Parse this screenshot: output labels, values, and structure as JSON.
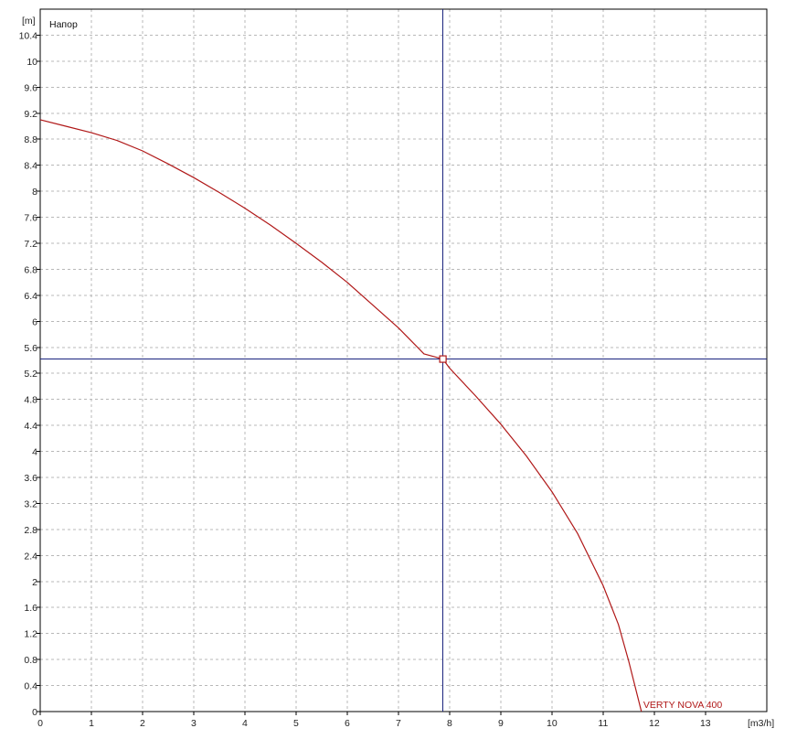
{
  "chart_data": {
    "type": "line",
    "title": "Напор",
    "xlabel": "[m3/h]",
    "ylabel": "[m]",
    "xlim": [
      0,
      14.2
    ],
    "ylim": [
      0,
      10.8
    ],
    "x_ticks": [
      0,
      1,
      2,
      3,
      4,
      5,
      6,
      7,
      8,
      9,
      10,
      11,
      12,
      13
    ],
    "y_ticks": [
      0,
      0.4,
      0.8,
      1.2,
      1.6,
      2,
      2.4,
      2.8,
      3.2,
      3.6,
      4,
      4.4,
      4.8,
      5.2,
      5.6,
      6,
      6.4,
      6.8,
      7.2,
      7.6,
      8,
      8.4,
      8.8,
      9.2,
      9.6,
      10,
      10.4
    ],
    "grid": true,
    "series": [
      {
        "name": "VERTY NOVA 400",
        "color": "#b01818",
        "x": [
          0,
          0.5,
          1,
          1.5,
          2,
          2.5,
          3,
          3.5,
          4,
          4.5,
          5,
          5.5,
          6,
          6.5,
          7,
          7.5,
          7.87,
          8,
          8.5,
          9,
          9.5,
          10,
          10.5,
          11,
          11.3,
          11.5,
          11.75
        ],
        "y": [
          9.1,
          9.0,
          8.9,
          8.78,
          8.62,
          8.42,
          8.21,
          7.98,
          7.74,
          7.48,
          7.2,
          6.91,
          6.6,
          6.25,
          5.9,
          5.5,
          5.42,
          5.28,
          4.86,
          4.42,
          3.93,
          3.38,
          2.74,
          1.94,
          1.34,
          0.78,
          0
        ]
      }
    ],
    "crosshair": {
      "x": 7.87,
      "y": 5.42,
      "color": "#1a237e"
    },
    "axis_color": "#000000",
    "grid_color": "#b8b8b8"
  }
}
